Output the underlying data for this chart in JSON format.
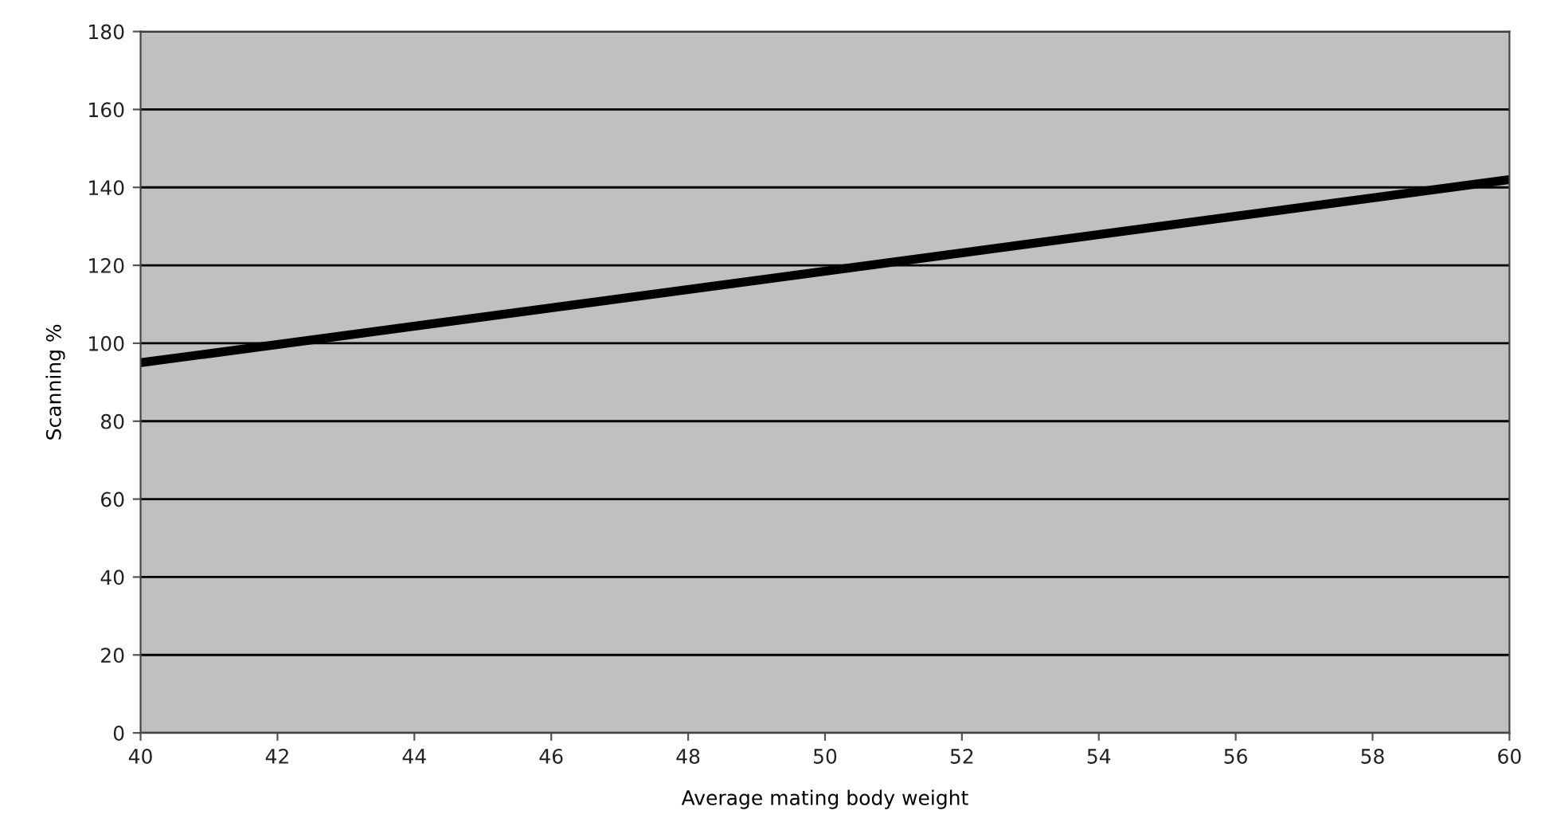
{
  "chart_data": {
    "type": "line",
    "xlabel": "Average mating body weight",
    "ylabel": "Scanning %",
    "x": [
      40,
      60
    ],
    "series": [
      {
        "color": "#000000",
        "values": [
          95,
          142
        ]
      }
    ],
    "xlim": [
      40,
      60
    ],
    "xticks": [
      40,
      42,
      44,
      46,
      48,
      50,
      52,
      54,
      56,
      58,
      60
    ],
    "ylim": [
      0,
      180
    ],
    "yticks": [
      0,
      20,
      40,
      60,
      80,
      100,
      120,
      140,
      160,
      180
    ],
    "grid": "y",
    "marker": "none",
    "line_style": "solid"
  }
}
